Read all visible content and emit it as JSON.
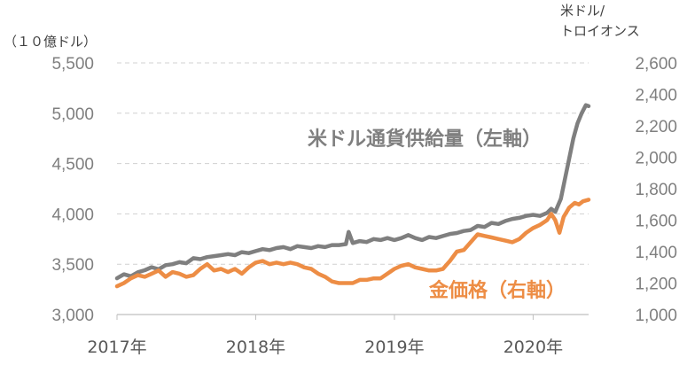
{
  "chart_data": {
    "type": "line",
    "left_axis": {
      "unit_label": "（１０億ドル）",
      "ylim": [
        3000,
        5500
      ],
      "ticks": [
        "3,000",
        "3,500",
        "4,000",
        "4,500",
        "5,000",
        "5,500"
      ]
    },
    "right_axis": {
      "unit_label_line1": "米ドル/",
      "unit_label_line2": "トロイオンス",
      "ylim": [
        1000,
        2600
      ],
      "ticks": [
        "1,000",
        "1,200",
        "1,400",
        "1,600",
        "1,800",
        "2,000",
        "2,200",
        "2,400",
        "2,600"
      ]
    },
    "x_axis": {
      "range": [
        2017.0,
        2020.4
      ],
      "ticks": [
        {
          "value": 2017,
          "label": "2017年"
        },
        {
          "value": 2018,
          "label": "2018年"
        },
        {
          "value": 2019,
          "label": "2019年"
        },
        {
          "value": 2020,
          "label": "2020年"
        }
      ]
    },
    "grid": "horizontal-dashed",
    "series": [
      {
        "name": "米ドル通貨供給量（左軸）",
        "axis": "left",
        "color": "#7f7f7f",
        "points": [
          [
            2017.0,
            3360
          ],
          [
            2017.05,
            3400
          ],
          [
            2017.1,
            3380
          ],
          [
            2017.15,
            3420
          ],
          [
            2017.2,
            3440
          ],
          [
            2017.25,
            3470
          ],
          [
            2017.3,
            3450
          ],
          [
            2017.35,
            3490
          ],
          [
            2017.4,
            3500
          ],
          [
            2017.45,
            3520
          ],
          [
            2017.5,
            3510
          ],
          [
            2017.55,
            3560
          ],
          [
            2017.6,
            3550
          ],
          [
            2017.65,
            3570
          ],
          [
            2017.7,
            3580
          ],
          [
            2017.75,
            3590
          ],
          [
            2017.8,
            3600
          ],
          [
            2017.85,
            3590
          ],
          [
            2017.9,
            3620
          ],
          [
            2017.95,
            3610
          ],
          [
            2018.0,
            3630
          ],
          [
            2018.05,
            3650
          ],
          [
            2018.1,
            3640
          ],
          [
            2018.15,
            3660
          ],
          [
            2018.2,
            3670
          ],
          [
            2018.25,
            3650
          ],
          [
            2018.3,
            3680
          ],
          [
            2018.35,
            3670
          ],
          [
            2018.4,
            3660
          ],
          [
            2018.45,
            3680
          ],
          [
            2018.5,
            3670
          ],
          [
            2018.55,
            3690
          ],
          [
            2018.6,
            3690
          ],
          [
            2018.65,
            3700
          ],
          [
            2018.67,
            3820
          ],
          [
            2018.7,
            3710
          ],
          [
            2018.75,
            3730
          ],
          [
            2018.8,
            3720
          ],
          [
            2018.85,
            3750
          ],
          [
            2018.9,
            3740
          ],
          [
            2018.95,
            3760
          ],
          [
            2019.0,
            3740
          ],
          [
            2019.05,
            3760
          ],
          [
            2019.1,
            3790
          ],
          [
            2019.15,
            3760
          ],
          [
            2019.2,
            3740
          ],
          [
            2019.25,
            3770
          ],
          [
            2019.3,
            3760
          ],
          [
            2019.35,
            3780
          ],
          [
            2019.4,
            3800
          ],
          [
            2019.45,
            3810
          ],
          [
            2019.5,
            3830
          ],
          [
            2019.55,
            3840
          ],
          [
            2019.6,
            3880
          ],
          [
            2019.65,
            3870
          ],
          [
            2019.7,
            3910
          ],
          [
            2019.75,
            3900
          ],
          [
            2019.8,
            3930
          ],
          [
            2019.85,
            3950
          ],
          [
            2019.9,
            3960
          ],
          [
            2019.95,
            3980
          ],
          [
            2020.0,
            3990
          ],
          [
            2020.05,
            3980
          ],
          [
            2020.1,
            4010
          ],
          [
            2020.13,
            4050
          ],
          [
            2020.16,
            4020
          ],
          [
            2020.2,
            4150
          ],
          [
            2020.23,
            4350
          ],
          [
            2020.26,
            4550
          ],
          [
            2020.29,
            4750
          ],
          [
            2020.32,
            4900
          ],
          [
            2020.35,
            5000
          ],
          [
            2020.38,
            5080
          ],
          [
            2020.4,
            5070
          ]
        ]
      },
      {
        "name": "金価格（右軸）",
        "axis": "right",
        "color": "#ed8d45",
        "points": [
          [
            2017.0,
            1180
          ],
          [
            2017.05,
            1200
          ],
          [
            2017.1,
            1230
          ],
          [
            2017.15,
            1250
          ],
          [
            2017.2,
            1240
          ],
          [
            2017.25,
            1260
          ],
          [
            2017.3,
            1280
          ],
          [
            2017.35,
            1240
          ],
          [
            2017.4,
            1270
          ],
          [
            2017.45,
            1260
          ],
          [
            2017.5,
            1240
          ],
          [
            2017.55,
            1250
          ],
          [
            2017.6,
            1290
          ],
          [
            2017.65,
            1320
          ],
          [
            2017.7,
            1280
          ],
          [
            2017.75,
            1290
          ],
          [
            2017.8,
            1270
          ],
          [
            2017.85,
            1290
          ],
          [
            2017.9,
            1260
          ],
          [
            2017.95,
            1300
          ],
          [
            2018.0,
            1330
          ],
          [
            2018.05,
            1340
          ],
          [
            2018.1,
            1320
          ],
          [
            2018.15,
            1330
          ],
          [
            2018.2,
            1320
          ],
          [
            2018.25,
            1330
          ],
          [
            2018.3,
            1320
          ],
          [
            2018.35,
            1300
          ],
          [
            2018.4,
            1290
          ],
          [
            2018.45,
            1260
          ],
          [
            2018.5,
            1240
          ],
          [
            2018.55,
            1210
          ],
          [
            2018.6,
            1200
          ],
          [
            2018.65,
            1200
          ],
          [
            2018.7,
            1200
          ],
          [
            2018.75,
            1220
          ],
          [
            2018.8,
            1220
          ],
          [
            2018.85,
            1230
          ],
          [
            2018.9,
            1230
          ],
          [
            2018.95,
            1260
          ],
          [
            2019.0,
            1290
          ],
          [
            2019.05,
            1310
          ],
          [
            2019.1,
            1320
          ],
          [
            2019.15,
            1300
          ],
          [
            2019.2,
            1290
          ],
          [
            2019.25,
            1280
          ],
          [
            2019.3,
            1280
          ],
          [
            2019.35,
            1290
          ],
          [
            2019.4,
            1340
          ],
          [
            2019.45,
            1400
          ],
          [
            2019.5,
            1410
          ],
          [
            2019.55,
            1460
          ],
          [
            2019.6,
            1510
          ],
          [
            2019.65,
            1500
          ],
          [
            2019.7,
            1490
          ],
          [
            2019.75,
            1480
          ],
          [
            2019.8,
            1470
          ],
          [
            2019.85,
            1460
          ],
          [
            2019.9,
            1480
          ],
          [
            2019.95,
            1520
          ],
          [
            2020.0,
            1550
          ],
          [
            2020.05,
            1570
          ],
          [
            2020.1,
            1600
          ],
          [
            2020.13,
            1640
          ],
          [
            2020.16,
            1600
          ],
          [
            2020.19,
            1520
          ],
          [
            2020.22,
            1620
          ],
          [
            2020.26,
            1680
          ],
          [
            2020.3,
            1710
          ],
          [
            2020.33,
            1700
          ],
          [
            2020.36,
            1720
          ],
          [
            2020.4,
            1730
          ]
        ]
      }
    ],
    "annotations": [
      {
        "text": "米ドル通貨供給量（左軸）",
        "series": 0
      },
      {
        "text": "金価格（右軸）",
        "series": 1
      }
    ]
  }
}
